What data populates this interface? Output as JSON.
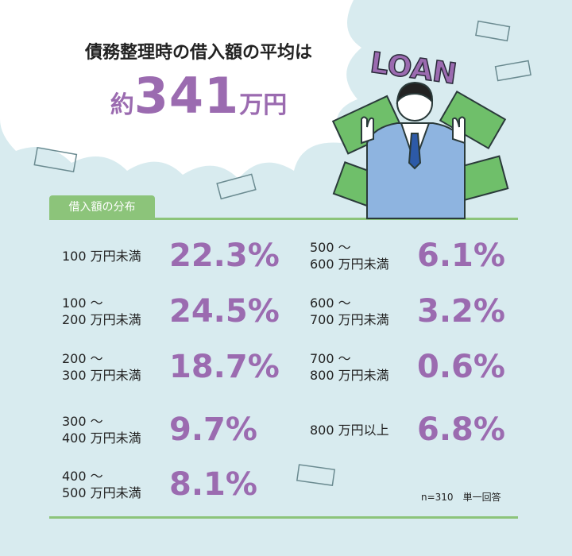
{
  "header": {
    "title": "債務整理時の借入額の平均は",
    "average": {
      "prefix": "約",
      "number": "341",
      "unit": "万円"
    }
  },
  "illustration": {
    "text": "LOAN"
  },
  "section": {
    "label": "借入額の分布",
    "items": [
      {
        "label": [
          "100 万円未満"
        ],
        "value": "22.3%"
      },
      {
        "label": [
          "100 ～",
          "200 万円未満"
        ],
        "value": "24.5%"
      },
      {
        "label": [
          "200 ～",
          "300 万円未満"
        ],
        "value": "18.7%"
      },
      {
        "label": [
          "300 ～",
          "400 万円未満"
        ],
        "value": "9.7%"
      },
      {
        "label": [
          "400 ～",
          "500 万円未満"
        ],
        "value": "8.1%"
      },
      {
        "label": [
          "500 ～",
          "600 万円未満"
        ],
        "value": "6.1%"
      },
      {
        "label": [
          "600 ～",
          "700 万円未満"
        ],
        "value": "3.2%"
      },
      {
        "label": [
          "700 ～",
          "800 万円未満"
        ],
        "value": "0.6%"
      },
      {
        "label": [
          "800 万円以上"
        ],
        "value": "6.8%"
      }
    ],
    "note": "n=310　単一回答"
  }
}
